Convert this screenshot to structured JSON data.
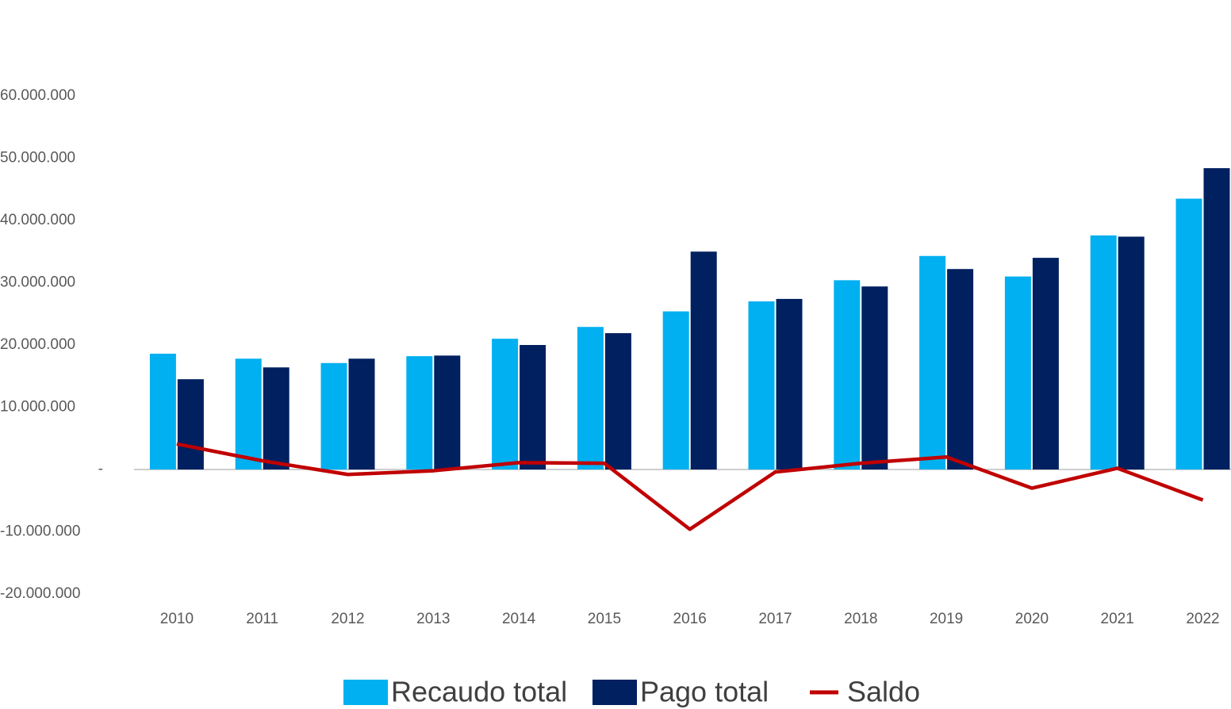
{
  "chart_data": {
    "type": "bar_line",
    "categories": [
      "2010",
      "2011",
      "2012",
      "2013",
      "2014",
      "2015",
      "2016",
      "2017",
      "2018",
      "2019",
      "2020",
      "2021",
      "2022"
    ],
    "series": [
      {
        "name": "Recaudo total",
        "type": "bar",
        "color": "#00b0f0",
        "values": [
          18600000,
          17800000,
          17100000,
          18200000,
          21000000,
          22900000,
          25400000,
          27000000,
          30400000,
          34300000,
          31000000,
          37600000,
          43500000
        ]
      },
      {
        "name": "Pago total",
        "type": "bar",
        "color": "#002060",
        "values": [
          14500000,
          16400000,
          17800000,
          18300000,
          20000000,
          21900000,
          35000000,
          27400000,
          29400000,
          32200000,
          34000000,
          37400000,
          48400000
        ]
      },
      {
        "name": "Saldo",
        "type": "line",
        "color": "#c00000",
        "values": [
          4100000,
          1400000,
          -800000,
          -200000,
          1100000,
          1000000,
          -9600000,
          -400000,
          1000000,
          2000000,
          -3000000,
          200000,
          -4900000
        ]
      }
    ],
    "ylim": [
      -20000000,
      70000000
    ],
    "yticks": [
      {
        "value": -20000000,
        "label": "-20.000.000"
      },
      {
        "value": -10000000,
        "label": "-10.000.000"
      },
      {
        "value": 0,
        "label": "-"
      },
      {
        "value": 10000000,
        "label": "10.000.000"
      },
      {
        "value": 20000000,
        "label": "20.000.000"
      },
      {
        "value": 30000000,
        "label": "30.000.000"
      },
      {
        "value": 40000000,
        "label": "40.000.000"
      },
      {
        "value": 50000000,
        "label": "50.000.000"
      },
      {
        "value": 60000000,
        "label": "60.000.000"
      }
    ],
    "grid": false,
    "legend": "bottom"
  }
}
